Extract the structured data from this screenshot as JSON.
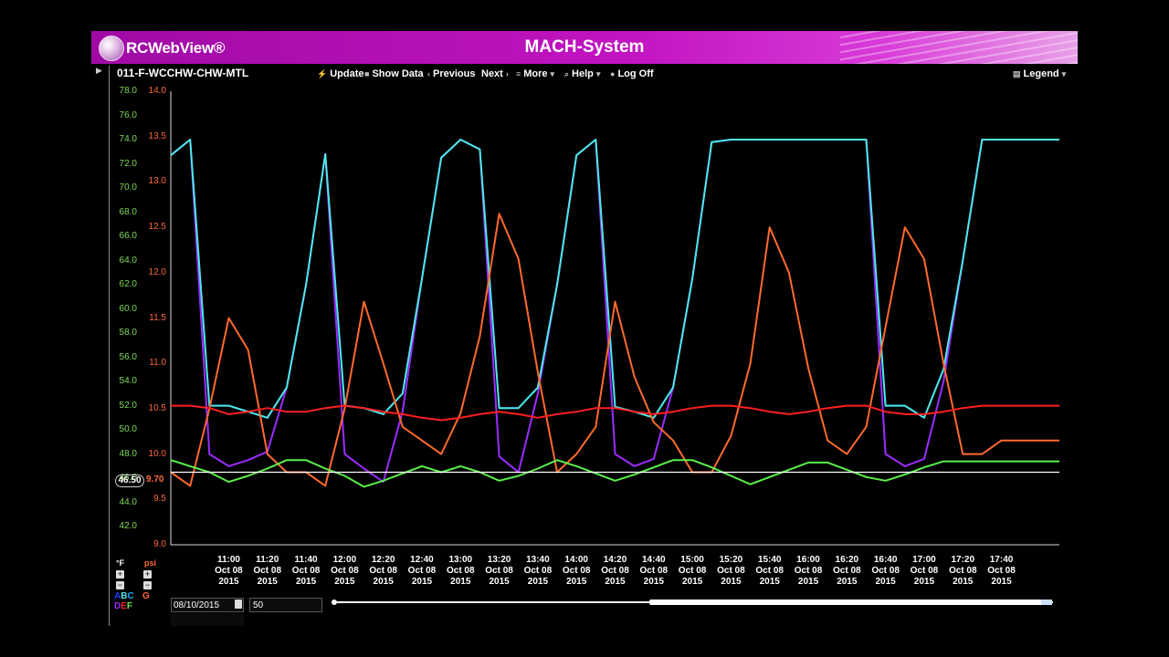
{
  "app": {
    "logo_text": "RCWebView®",
    "title": "MACH-System",
    "brand_color": "#c214c2"
  },
  "toolbar": {
    "page_label": "011-F-WCCHW-CHW-MTL",
    "update": "Update",
    "show_data": "Show Data",
    "previous": "Previous",
    "next": "Next",
    "more": "More",
    "help": "Help",
    "log_off": "Log Off",
    "legend": "Legend"
  },
  "controls": {
    "date_value": "08/10/2015",
    "count_value": "50",
    "slider_position": 0.44
  },
  "cursor": {
    "left_value": "46.50",
    "right_value": "9.70"
  },
  "units": {
    "left": "°F",
    "right": "psi",
    "left_codes_1": "ABC",
    "left_codes_2": "DEF",
    "right_code": "G"
  },
  "chart_data": {
    "type": "line",
    "left_axis": {
      "unit": "°F",
      "ticks": [
        "78.0",
        "76.0",
        "74.0",
        "72.0",
        "70.0",
        "68.0",
        "66.0",
        "64.0",
        "62.0",
        "60.0",
        "58.0",
        "56.0",
        "54.0",
        "52.0",
        "50.0",
        "48.0",
        "46.0",
        "44.0",
        "42.0"
      ],
      "ylim": [
        40.5,
        78.0
      ]
    },
    "right_axis": {
      "unit": "psi",
      "ticks": [
        "14.0",
        "13.5",
        "13.0",
        "12.5",
        "12.0",
        "11.5",
        "11.0",
        "10.5",
        "10.0",
        "9.5",
        "9.0"
      ],
      "ylim": [
        9.0,
        14.0
      ]
    },
    "x_ticks": [
      {
        "time": "11:00",
        "date": "Oct 08",
        "year": "2015"
      },
      {
        "time": "11:20",
        "date": "Oct 08",
        "year": "2015"
      },
      {
        "time": "11:40",
        "date": "Oct 08",
        "year": "2015"
      },
      {
        "time": "12:00",
        "date": "Oct 08",
        "year": "2015"
      },
      {
        "time": "12:20",
        "date": "Oct 08",
        "year": "2015"
      },
      {
        "time": "12:40",
        "date": "Oct 08",
        "year": "2015"
      },
      {
        "time": "13:00",
        "date": "Oct 08",
        "year": "2015"
      },
      {
        "time": "13:20",
        "date": "Oct 08",
        "year": "2015"
      },
      {
        "time": "13:40",
        "date": "Oct 08",
        "year": "2015"
      },
      {
        "time": "14:00",
        "date": "Oct 08",
        "year": "2015"
      },
      {
        "time": "14:20",
        "date": "Oct 08",
        "year": "2015"
      },
      {
        "time": "14:40",
        "date": "Oct 08",
        "year": "2015"
      },
      {
        "time": "15:00",
        "date": "Oct 08",
        "year": "2015"
      },
      {
        "time": "15:20",
        "date": "Oct 08",
        "year": "2015"
      },
      {
        "time": "15:40",
        "date": "Oct 08",
        "year": "2015"
      },
      {
        "time": "16:00",
        "date": "Oct 08",
        "year": "2015"
      },
      {
        "time": "16:20",
        "date": "Oct 08",
        "year": "2015"
      },
      {
        "time": "16:40",
        "date": "Oct 08",
        "year": "2015"
      },
      {
        "time": "17:00",
        "date": "Oct 08",
        "year": "2015"
      },
      {
        "time": "17:20",
        "date": "Oct 08",
        "year": "2015"
      },
      {
        "time": "17:40",
        "date": "Oct 08",
        "year": "2015"
      }
    ],
    "x_minutes": [
      630,
      640,
      650,
      660,
      670,
      680,
      690,
      700,
      710,
      720,
      730,
      740,
      750,
      760,
      770,
      780,
      790,
      800,
      810,
      820,
      830,
      840,
      850,
      860,
      870,
      880,
      890,
      900,
      910,
      920,
      930,
      940,
      950,
      960,
      970,
      980,
      990,
      1000,
      1010,
      1020,
      1030,
      1040,
      1050,
      1060,
      1070,
      1080,
      1090
    ],
    "series": [
      {
        "color": "#1a3dff",
        "axis": "left",
        "values": [
          72.7,
          74.0,
          52.0,
          52.0,
          51.5,
          51.0,
          53.5,
          62.0,
          72.8,
          52.0,
          51.8,
          51.3,
          53.0,
          62.5,
          72.5,
          74.0,
          73.2,
          51.8,
          51.8,
          53.5,
          62.0,
          72.7,
          74.0,
          51.9,
          51.5,
          51.0,
          53.5,
          62.5,
          73.8,
          74.0,
          74.0,
          74.0,
          74.0,
          74.0,
          74.0,
          74.0,
          74.0,
          52.0,
          52.0,
          51.0,
          55.0,
          64.0,
          74.0,
          74.0,
          74.0,
          74.0,
          74.0
        ]
      },
      {
        "color": "#9b2cff",
        "axis": "left",
        "values": [
          72.7,
          74.0,
          48.0,
          47.0,
          47.5,
          48.2,
          53.5,
          62.0,
          72.8,
          48.0,
          46.8,
          45.7,
          51.5,
          62.5,
          72.5,
          74.0,
          73.2,
          47.8,
          46.5,
          53.0,
          62.0,
          72.7,
          74.0,
          48.0,
          47.0,
          47.6,
          53.5,
          62.5,
          73.8,
          74.0,
          74.0,
          74.0,
          74.0,
          74.0,
          74.0,
          74.0,
          74.0,
          48.0,
          47.0,
          47.6,
          54.0,
          64.0,
          74.0,
          74.0,
          74.0,
          74.0,
          74.0
        ]
      },
      {
        "color": "#4de8e0",
        "axis": "left",
        "values": [
          72.7,
          74.0,
          52.0,
          52.0,
          51.5,
          51.0,
          53.5,
          62.0,
          72.8,
          52.0,
          51.8,
          51.3,
          53.0,
          62.5,
          72.5,
          74.0,
          73.2,
          51.8,
          51.8,
          53.5,
          62.0,
          72.7,
          74.0,
          51.9,
          51.5,
          51.0,
          53.5,
          62.5,
          73.8,
          74.0,
          74.0,
          74.0,
          74.0,
          74.0,
          74.0,
          74.0,
          74.0,
          52.0,
          52.0,
          51.0,
          55.0,
          64.0,
          74.0,
          74.0,
          74.0,
          74.0,
          74.0
        ]
      },
      {
        "color": "#ff6a2e",
        "axis": "right",
        "values": [
          9.8,
          9.65,
          10.5,
          11.5,
          11.15,
          10.0,
          9.8,
          9.8,
          9.65,
          10.5,
          11.68,
          11.0,
          10.3,
          10.15,
          10.0,
          10.45,
          11.3,
          12.65,
          12.15,
          10.9,
          9.8,
          10.0,
          10.3,
          11.68,
          10.85,
          10.35,
          10.15,
          9.8,
          9.8,
          10.2,
          11.0,
          12.5,
          12.0,
          10.95,
          10.15,
          10.0,
          10.3,
          11.4,
          12.5,
          12.15,
          11.0,
          10.0,
          10.0,
          10.15,
          10.15,
          10.15,
          10.15
        ]
      },
      {
        "color": "#ff1f1f",
        "axis": "left",
        "values": [
          52.0,
          52.0,
          51.8,
          51.3,
          51.5,
          51.8,
          51.5,
          51.5,
          51.8,
          52.0,
          51.8,
          51.5,
          51.3,
          51.0,
          50.8,
          51.0,
          51.3,
          51.5,
          51.3,
          51.0,
          51.3,
          51.5,
          51.8,
          51.8,
          51.5,
          51.3,
          51.5,
          51.8,
          52.0,
          52.0,
          51.8,
          51.5,
          51.3,
          51.5,
          51.8,
          52.0,
          52.0,
          51.5,
          51.3,
          51.3,
          51.5,
          51.8,
          52.0,
          52.0,
          52.0,
          52.0,
          52.0
        ]
      },
      {
        "color": "#5af04a",
        "axis": "left",
        "values": [
          47.5,
          47.0,
          46.5,
          45.7,
          46.2,
          46.8,
          47.5,
          47.5,
          46.8,
          46.2,
          45.3,
          45.8,
          46.4,
          47.0,
          46.5,
          47.0,
          46.5,
          45.8,
          46.2,
          46.8,
          47.5,
          47.0,
          46.4,
          45.8,
          46.3,
          46.9,
          47.5,
          47.5,
          46.9,
          46.2,
          45.5,
          46.1,
          46.7,
          47.3,
          47.3,
          46.7,
          46.1,
          45.8,
          46.3,
          46.9,
          47.4,
          47.4,
          47.4,
          47.4,
          47.4,
          47.4,
          47.4
        ]
      }
    ],
    "cursor_line": 46.5
  }
}
